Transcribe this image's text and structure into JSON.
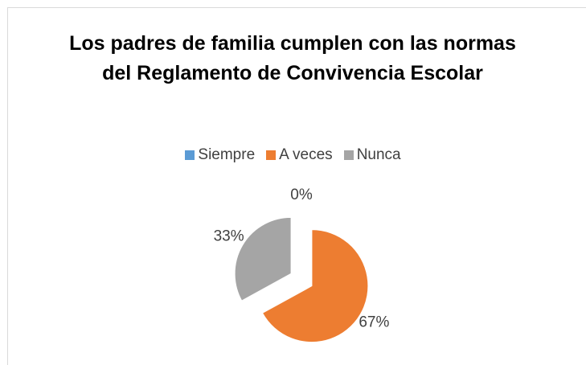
{
  "chart_data": {
    "type": "pie",
    "title": "Los padres de familia cumplen con las normas del Reglamento de Convivencia Escolar",
    "categories": [
      "Siempre",
      "A veces",
      "Nunca"
    ],
    "values": [
      0,
      67,
      33
    ],
    "value_labels": [
      "0%",
      "67%",
      "33%"
    ],
    "colors": [
      "#5b9bd5",
      "#ed7d31",
      "#a5a5a5"
    ],
    "legend": "top"
  }
}
